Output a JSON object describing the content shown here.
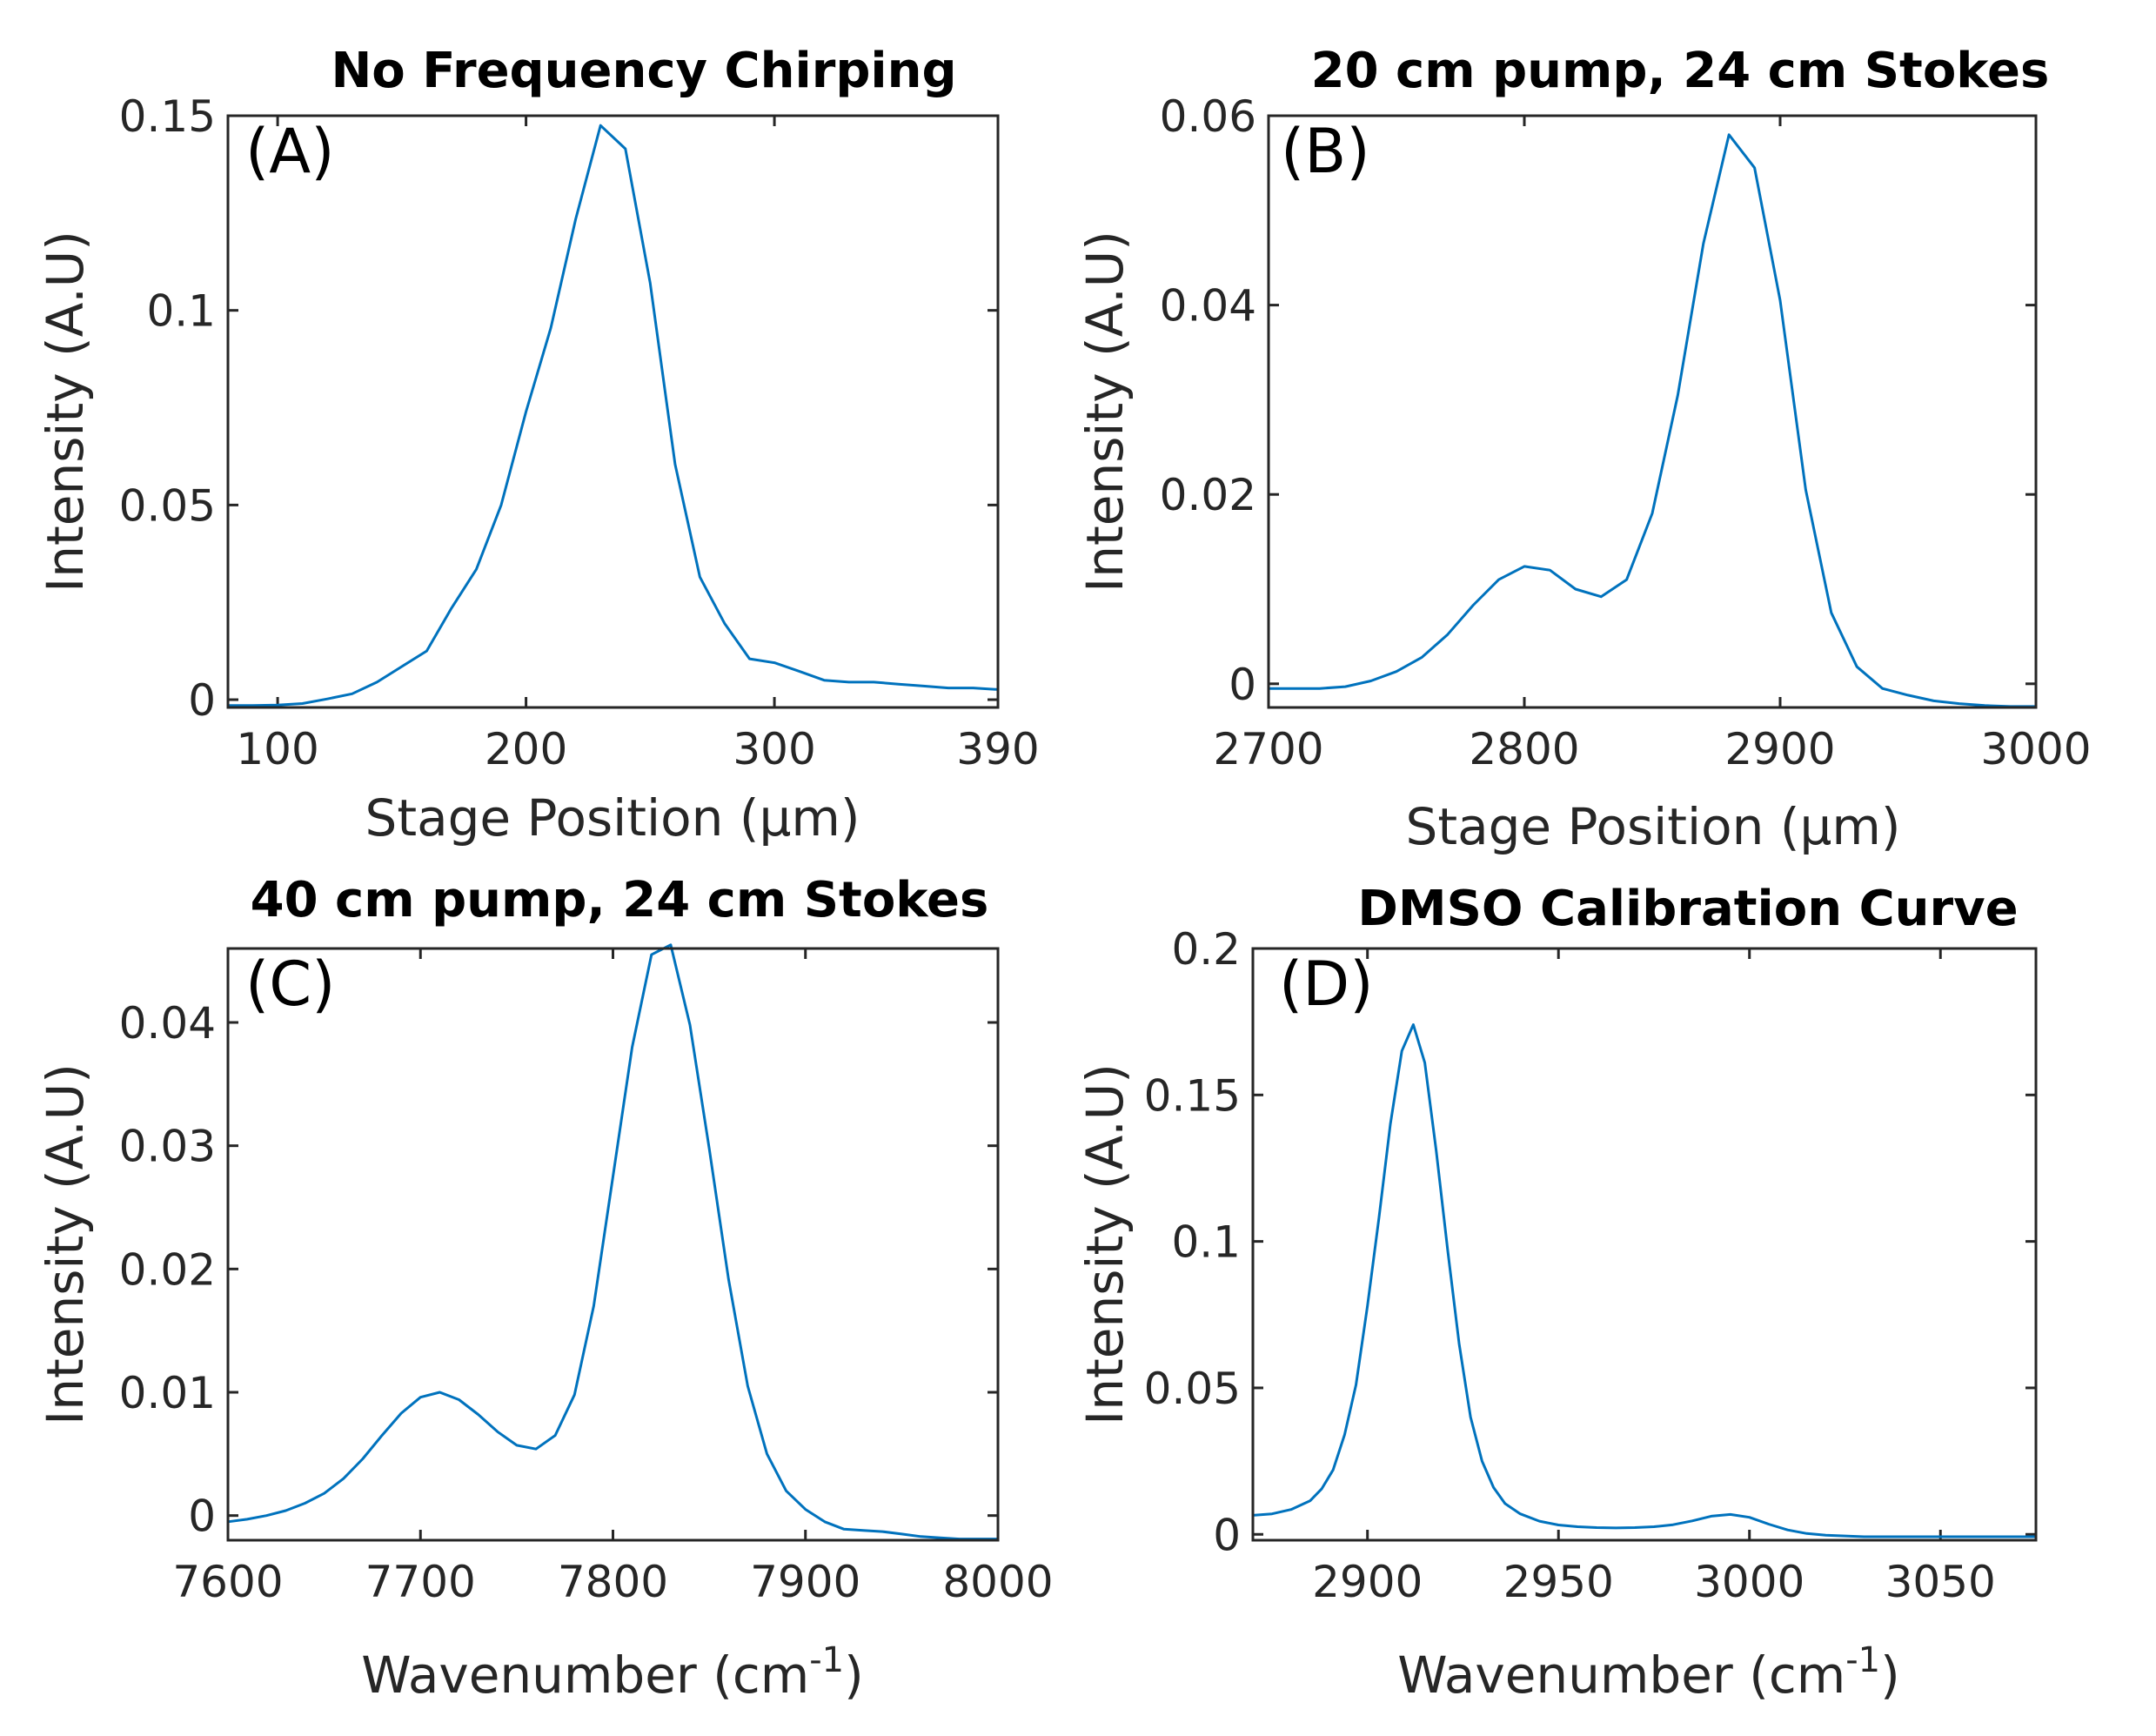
{
  "figure": {
    "colors": {
      "series": "#0072BD",
      "axis": "#262626",
      "title": "#000000",
      "background": "#FFFFFF"
    }
  },
  "chart_data": [
    {
      "type": "line",
      "panel": "(A)",
      "title": "No Frequency Chirping",
      "xlabel": "Stage Position (μm)",
      "ylabel": "Intensity (A.U)",
      "xlim": [
        80,
        390
      ],
      "ylim": [
        -0.002,
        0.15
      ],
      "xticks": [
        100,
        200,
        300,
        390
      ],
      "xtick_labels": [
        "100",
        "200",
        "300",
        "390"
      ],
      "yticks": [
        0,
        0.05,
        0.1,
        0.15
      ],
      "ytick_labels": [
        "0",
        "0.05",
        "0.1",
        "0.15"
      ],
      "x": [
        80,
        90,
        100,
        110,
        120,
        130,
        140,
        150,
        160,
        170,
        180,
        190,
        200,
        210,
        220,
        230,
        240,
        250,
        260,
        270,
        280,
        290,
        300,
        310,
        320,
        330,
        340,
        350,
        360,
        370,
        380,
        390
      ],
      "y": [
        -0.0015,
        -0.0015,
        -0.0014,
        -0.001,
        0.0002,
        0.0015,
        0.0045,
        0.0085,
        0.0125,
        0.0235,
        0.0335,
        0.05,
        0.074,
        0.0955,
        0.1235,
        0.1475,
        0.1415,
        0.107,
        0.0605,
        0.0315,
        0.0195,
        0.0105,
        0.0095,
        0.0073,
        0.005,
        0.0045,
        0.0045,
        0.004,
        0.0035,
        0.003,
        0.003,
        0.0026
      ]
    },
    {
      "type": "line",
      "panel": "(B)",
      "title": "20 cm pump, 24 cm Stokes",
      "xlabel": "Stage Position (μm)",
      "ylabel": "Intensity (A.U)",
      "xlim": [
        2700,
        3000
      ],
      "ylim": [
        -0.0025,
        0.06
      ],
      "xticks": [
        2700,
        2800,
        2900,
        3000
      ],
      "xtick_labels": [
        "2700",
        "2800",
        "2900",
        "3000"
      ],
      "yticks": [
        0,
        0.02,
        0.04,
        0.06
      ],
      "ytick_labels": [
        "0",
        "0.02",
        "0.04",
        "0.06"
      ],
      "x": [
        2700,
        2710,
        2720,
        2730,
        2740,
        2750,
        2760,
        2770,
        2780,
        2790,
        2800,
        2810,
        2820,
        2830,
        2840,
        2850,
        2860,
        2870,
        2880,
        2890,
        2900,
        2910,
        2920,
        2930,
        2940,
        2950,
        2960,
        2970,
        2980,
        2990,
        3000
      ],
      "y": [
        -0.0005,
        -0.0005,
        -0.0005,
        -0.0003,
        0.0003,
        0.0013,
        0.0028,
        0.0052,
        0.0083,
        0.011,
        0.0124,
        0.012,
        0.01,
        0.0092,
        0.011,
        0.018,
        0.0305,
        0.0465,
        0.058,
        0.0545,
        0.0405,
        0.0205,
        0.0075,
        0.0018,
        -0.0005,
        -0.0012,
        -0.0018,
        -0.0021,
        -0.0023,
        -0.0024,
        -0.0024
      ]
    },
    {
      "type": "line",
      "panel": "(C)",
      "title": "40 cm pump, 24 cm Stokes",
      "xlabel": "Wavenumber (cm",
      "xlabel_sup": "-1",
      "xlabel_close": ")",
      "ylabel": "Intensity (A.U)",
      "xlim": [
        7600,
        8000
      ],
      "ylim": [
        -0.002,
        0.046
      ],
      "xticks": [
        7600,
        7700,
        7800,
        7900,
        8000
      ],
      "xtick_labels": [
        "7600",
        "7700",
        "7800",
        "7900",
        "8000"
      ],
      "yticks": [
        0,
        0.01,
        0.02,
        0.03,
        0.04
      ],
      "ytick_labels": [
        "0",
        "0.01",
        "0.02",
        "0.03",
        "0.04"
      ],
      "x": [
        7600,
        7610,
        7620,
        7630,
        7640,
        7650,
        7660,
        7670,
        7680,
        7690,
        7700,
        7710,
        7720,
        7730,
        7740,
        7750,
        7760,
        7770,
        7780,
        7790,
        7800,
        7810,
        7820,
        7830,
        7840,
        7850,
        7860,
        7870,
        7880,
        7890,
        7900,
        7910,
        7920,
        7930,
        7940,
        7950,
        7960,
        7970,
        7980,
        7990,
        8000
      ],
      "y": [
        -0.0005,
        -0.0003,
        0.0,
        0.0004,
        0.001,
        0.0018,
        0.003,
        0.0046,
        0.0065,
        0.0083,
        0.0096,
        0.01,
        0.0094,
        0.0082,
        0.0068,
        0.0057,
        0.0054,
        0.0065,
        0.0098,
        0.017,
        0.0275,
        0.038,
        0.0455,
        0.0463,
        0.0398,
        0.0298,
        0.0192,
        0.0105,
        0.005,
        0.002,
        0.0005,
        -0.0005,
        -0.0011,
        -0.0012,
        -0.0013,
        -0.0015,
        -0.0017,
        -0.0018,
        -0.0019,
        -0.0019,
        -0.0019
      ]
    },
    {
      "type": "line",
      "panel": "(D)",
      "title": "DMSO Calibration Curve",
      "xlabel": "Wavenumber (cm",
      "xlabel_sup": "-1",
      "xlabel_close": ")",
      "ylabel": "Intensity (A.U)",
      "xlim": [
        2870,
        3075
      ],
      "ylim": [
        -0.002,
        0.2
      ],
      "xticks": [
        2900,
        2950,
        3000,
        3050
      ],
      "xtick_labels": [
        "2900",
        "2950",
        "3000",
        "3050"
      ],
      "yticks": [
        0,
        0.05,
        0.1,
        0.15,
        0.2
      ],
      "ytick_labels": [
        "0",
        "0.05",
        "0.1",
        "0.15",
        "0.2"
      ],
      "x": [
        2870,
        2875,
        2880,
        2885,
        2888,
        2891,
        2894,
        2897,
        2900,
        2903,
        2906,
        2909,
        2912,
        2915,
        2918,
        2921,
        2924,
        2927,
        2930,
        2933,
        2936,
        2940,
        2945,
        2950,
        2955,
        2960,
        2965,
        2970,
        2975,
        2980,
        2985,
        2990,
        2995,
        3000,
        3005,
        3010,
        3015,
        3020,
        3030,
        3040,
        3050,
        3060,
        3075
      ],
      "y": [
        0.0065,
        0.007,
        0.0085,
        0.0115,
        0.0155,
        0.022,
        0.034,
        0.051,
        0.078,
        0.108,
        0.14,
        0.165,
        0.174,
        0.161,
        0.131,
        0.097,
        0.065,
        0.04,
        0.025,
        0.016,
        0.0105,
        0.007,
        0.0045,
        0.0032,
        0.0026,
        0.0023,
        0.0022,
        0.0023,
        0.0026,
        0.0033,
        0.0046,
        0.0062,
        0.0068,
        0.0058,
        0.0035,
        0.0015,
        0.0003,
        -0.0003,
        -0.0008,
        -0.0008,
        -0.0008,
        -0.0008,
        -0.0008
      ]
    }
  ]
}
